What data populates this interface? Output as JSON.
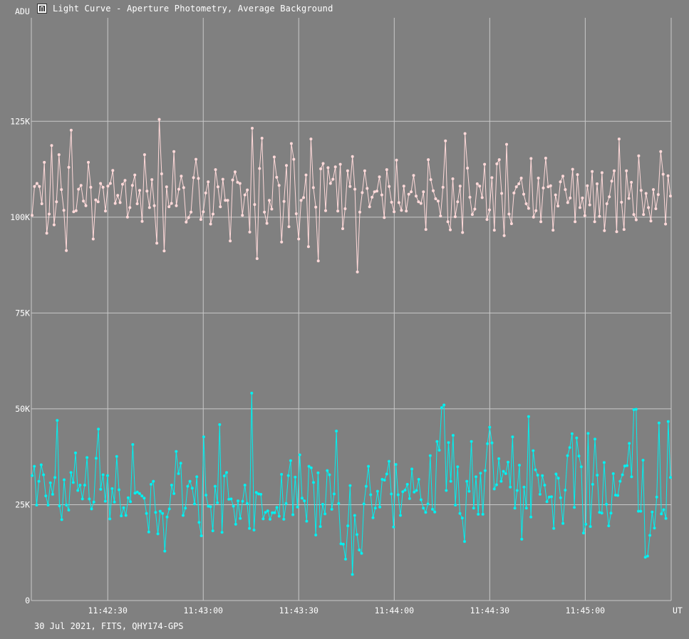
{
  "window": {
    "title": "Light Curve - Aperture Photometry, Average Background",
    "icon": "chart-icon"
  },
  "footer_text": "30 Jul 2021, FITS, QHY174-GPS",
  "colors": {
    "background": "#808080",
    "grid": "#c8c8c8",
    "series1": "#ffd9d9",
    "series2": "#00f0f0",
    "text": "#ffffff"
  },
  "chart_data": {
    "type": "line",
    "y_unit_label": "ADU",
    "x_unit_label": "UT",
    "ylim": [
      0,
      152000
    ],
    "y_ticks": [
      {
        "value": 0,
        "label": "0"
      },
      {
        "value": 25000,
        "label": "25K"
      },
      {
        "value": 50000,
        "label": "50K"
      },
      {
        "value": 75000,
        "label": "75K"
      },
      {
        "value": 100000,
        "label": "100K"
      },
      {
        "value": 125000,
        "label": "125K"
      }
    ],
    "x_range": [
      "11:42:06",
      "11:45:27"
    ],
    "x_ticks": [
      "11:42:30",
      "11:43:00",
      "11:43:30",
      "11:44:00",
      "11:44:30",
      "11:45:00"
    ],
    "grid": true,
    "series": [
      {
        "color": "#ffd9d9",
        "values": [
          100500,
          108000,
          108800,
          108000,
          103500,
          114300,
          95800,
          100800,
          118700,
          98000,
          104000,
          116300,
          107200,
          101800,
          91300,
          113000,
          122700,
          101400,
          101700,
          107300,
          108300,
          104200,
          103000,
          114300,
          107800,
          94300,
          104500,
          104000,
          108800,
          107800,
          101600,
          108100,
          108800,
          112200,
          103600,
          105700,
          103800,
          108600,
          109600,
          100000,
          102500,
          108300,
          111000,
          103500,
          107000,
          98900,
          116300,
          106800,
          102500,
          109800,
          103000,
          93200,
          125500,
          111300,
          91200,
          107900,
          102700,
          103600,
          117100,
          103000,
          107300,
          110700,
          107700,
          98700,
          99900,
          101300,
          110300,
          115100,
          110100,
          99400,
          101400,
          106300,
          109200,
          98200,
          100800,
          112400,
          107900,
          102700,
          109900,
          104400,
          104400,
          93800,
          109700,
          111800,
          109100,
          108800,
          100500,
          105800,
          107100,
          96100,
          123200,
          103300,
          89200,
          112700,
          120600,
          101300,
          98400,
          104400,
          102100,
          115700,
          110400,
          108300,
          93500,
          104100,
          113500,
          97500,
          119200,
          115100,
          100900,
          94300,
          104400,
          105100,
          111000,
          92300,
          120400,
          107700,
          102600,
          88600,
          112600,
          114000,
          101700,
          112900,
          108800,
          109900,
          113100,
          101600,
          113800,
          97000,
          102200,
          112100,
          108000,
          115800,
          107300,
          85700,
          101300,
          106400,
          112100,
          107500,
          102700,
          105200,
          106600,
          106800,
          110500,
          105800,
          99900,
          112400,
          108000,
          103900,
          101400,
          114900,
          103800,
          101800,
          108100,
          101600,
          106000,
          106600,
          110900,
          105500,
          104000,
          103600,
          106600,
          96800,
          115000,
          109800,
          106900,
          104800,
          104200,
          100300,
          107800,
          119900,
          98800,
          96700,
          110000,
          100100,
          104000,
          108100,
          96000,
          121800,
          112800,
          105200,
          100700,
          102100,
          108700,
          108100,
          105100,
          113800,
          99400,
          101900,
          110300,
          96600,
          113900,
          115000,
          106200,
          95200,
          119000,
          100800,
          98300,
          106300,
          107900,
          108700,
          110200,
          106000,
          103500,
          102300,
          115300,
          100000,
          101700,
          110200,
          98800,
          107600,
          115400,
          107900,
          108200,
          96600,
          105800,
          102900,
          109200,
          110700,
          107200,
          103800,
          105000,
          112500,
          98800,
          111100,
          102500,
          105000,
          100400,
          108200,
          103200,
          111900,
          98800,
          108700,
          100200,
          111600,
          96500,
          103500,
          105300,
          109400,
          112100,
          96200,
          120400,
          103900,
          96800,
          112100,
          104900,
          109100,
          100700,
          99300,
          116000,
          107000,
          100700,
          106200,
          102500,
          99000,
          107200,
          102200,
          105900,
          117100,
          111200,
          98200,
          110800,
          105500
        ]
      },
      {
        "color": "#00f0f0",
        "values": [
          32600,
          35000,
          24900,
          31100,
          35400,
          32800,
          27300,
          24900,
          30700,
          27700,
          32100,
          47000,
          24700,
          21100,
          31500,
          24900,
          23600,
          33400,
          30800,
          38500,
          28700,
          30100,
          26500,
          30100,
          37300,
          26500,
          23900,
          25700,
          37100,
          44700,
          29000,
          32800,
          25900,
          32600,
          21300,
          29200,
          25700,
          37600,
          28900,
          22100,
          24200,
          22200,
          26800,
          25800,
          40700,
          28000,
          28300,
          27900,
          27300,
          26700,
          22700,
          17900,
          30300,
          31100,
          23000,
          17400,
          23300,
          22700,
          12900,
          21800,
          23900,
          30100,
          27900,
          38900,
          33100,
          35800,
          22200,
          24100,
          29800,
          31100,
          29300,
          25200,
          32300,
          20400,
          16900,
          42700,
          27500,
          24600,
          24500,
          18200,
          29800,
          25500,
          45900,
          17800,
          32500,
          33400,
          26400,
          26500,
          24600,
          19900,
          26000,
          21400,
          25900,
          30100,
          25300,
          18800,
          54100,
          18400,
          28200,
          27800,
          27700,
          21300,
          23000,
          23400,
          21200,
          22900,
          22900,
          24300,
          22000,
          32900,
          21200,
          25300,
          32600,
          36500,
          22400,
          32200,
          24400,
          38000,
          26700,
          26000,
          20700,
          35000,
          34600,
          30800,
          17100,
          33300,
          19300,
          25100,
          22600,
          33900,
          32800,
          23800,
          27800,
          44200,
          25300,
          14800,
          14700,
          10800,
          19500,
          30000,
          6800,
          22200,
          17200,
          13200,
          12300,
          25200,
          29800,
          35000,
          27600,
          21600,
          24100,
          28500,
          24400,
          31600,
          31400,
          33000,
          36300,
          27800,
          19200,
          35500,
          27600,
          22200,
          28400,
          28800,
          30300,
          26600,
          34300,
          28300,
          28700,
          31600,
          26300,
          24100,
          23000,
          25200,
          37800,
          23800,
          23100,
          41500,
          39200,
          50300,
          51000,
          28700,
          41200,
          31100,
          43100,
          24900,
          34900,
          22700,
          21500,
          15400,
          31100,
          28500,
          41500,
          24100,
          32300,
          22500,
          33200,
          22500,
          33900,
          40900,
          45200,
          41100,
          29100,
          30200,
          37000,
          31100,
          33700,
          33100,
          36100,
          29600,
          42700,
          24100,
          28700,
          35300,
          16000,
          29600,
          24100,
          48000,
          21800,
          39100,
          34100,
          32700,
          27700,
          32600,
          30100,
          25800,
          27000,
          27100,
          18800,
          33000,
          31900,
          26800,
          20100,
          28800,
          37800,
          39900,
          43500,
          24300,
          42400,
          37700,
          34900,
          17600,
          19900,
          43600,
          19300,
          30300,
          42100,
          32700,
          23000,
          22800,
          36000,
          25100,
          19500,
          22800,
          33100,
          27500,
          27400,
          31100,
          32800,
          35100,
          35200,
          41000,
          32300,
          49800,
          49900,
          23300,
          23300,
          36600,
          11300,
          11600,
          17000,
          23100,
          18900,
          27000,
          46300,
          22600,
          23700,
          21400,
          46700,
          32100
        ]
      }
    ]
  }
}
